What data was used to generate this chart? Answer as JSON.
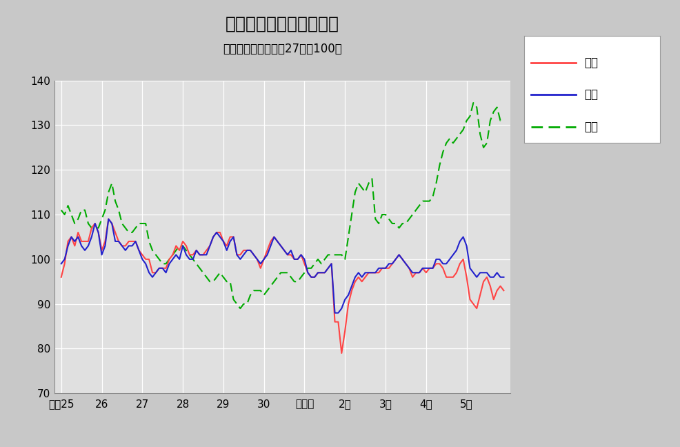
{
  "title": "鳥取県鉱工業指数の推移",
  "subtitle": "（季節調整済、平成27年＝100）",
  "ylim": [
    70,
    140
  ],
  "yticks": [
    70,
    80,
    90,
    100,
    110,
    120,
    130,
    140
  ],
  "fig_facecolor": "#c8c8c8",
  "plot_bg_color": "#e0e0e0",
  "legend_labels": [
    "生産",
    "出荷",
    "在庫"
  ],
  "line_colors": [
    "#ff4444",
    "#2222cc",
    "#00aa00"
  ],
  "x_tick_labels": [
    "平成25",
    "26",
    "27",
    "28",
    "29",
    "30",
    "令和元",
    "2年",
    "3年",
    "4年",
    "5年"
  ],
  "x_tick_positions": [
    0,
    12,
    24,
    36,
    48,
    60,
    72,
    84,
    96,
    108,
    120
  ],
  "seisan": [
    96,
    99,
    104,
    105,
    103,
    106,
    104,
    104,
    104,
    107,
    108,
    106,
    102,
    104,
    109,
    108,
    106,
    104,
    103,
    103,
    104,
    104,
    104,
    102,
    101,
    100,
    100,
    97,
    97,
    98,
    98,
    98,
    100,
    101,
    103,
    102,
    104,
    103,
    101,
    101,
    102,
    101,
    101,
    102,
    103,
    105,
    106,
    106,
    104,
    103,
    105,
    105,
    101,
    101,
    102,
    102,
    102,
    101,
    100,
    98,
    100,
    102,
    104,
    105,
    104,
    103,
    102,
    101,
    101,
    100,
    100,
    101,
    99,
    97,
    96,
    96,
    97,
    97,
    97,
    98,
    99,
    86,
    86,
    79,
    84,
    90,
    93,
    95,
    96,
    95,
    96,
    97,
    97,
    97,
    97,
    98,
    98,
    98,
    99,
    100,
    101,
    100,
    99,
    98,
    96,
    97,
    97,
    98,
    97,
    98,
    98,
    99,
    99,
    98,
    96,
    96,
    96,
    97,
    99,
    100,
    96,
    91,
    90,
    89,
    92,
    95,
    96,
    94,
    91,
    93,
    94,
    93
  ],
  "shuka": [
    99,
    100,
    103,
    105,
    104,
    105,
    103,
    102,
    103,
    105,
    108,
    106,
    101,
    103,
    109,
    108,
    104,
    104,
    103,
    102,
    103,
    103,
    104,
    102,
    100,
    99,
    97,
    96,
    97,
    98,
    98,
    97,
    99,
    100,
    101,
    100,
    103,
    101,
    100,
    100,
    102,
    101,
    101,
    101,
    103,
    105,
    106,
    105,
    104,
    102,
    104,
    105,
    101,
    100,
    101,
    102,
    102,
    101,
    100,
    99,
    100,
    101,
    103,
    105,
    104,
    103,
    102,
    101,
    102,
    100,
    100,
    101,
    100,
    97,
    96,
    96,
    97,
    97,
    97,
    98,
    99,
    88,
    88,
    89,
    91,
    92,
    94,
    96,
    97,
    96,
    97,
    97,
    97,
    97,
    98,
    98,
    98,
    99,
    99,
    100,
    101,
    100,
    99,
    98,
    97,
    97,
    97,
    98,
    98,
    98,
    98,
    100,
    100,
    99,
    99,
    100,
    101,
    102,
    104,
    105,
    103,
    98,
    97,
    96,
    97,
    97,
    97,
    96,
    96,
    97,
    96,
    96
  ],
  "zaiko": [
    111,
    110,
    112,
    110,
    108,
    109,
    111,
    111,
    108,
    107,
    107,
    107,
    109,
    111,
    115,
    117,
    113,
    111,
    108,
    107,
    106,
    106,
    107,
    108,
    108,
    108,
    104,
    102,
    101,
    100,
    99,
    99,
    100,
    101,
    102,
    103,
    103,
    102,
    101,
    100,
    99,
    98,
    97,
    96,
    95,
    95,
    96,
    97,
    96,
    95,
    95,
    91,
    90,
    89,
    90,
    90,
    92,
    93,
    93,
    93,
    92,
    93,
    94,
    95,
    96,
    97,
    97,
    97,
    96,
    95,
    95,
    96,
    97,
    98,
    98,
    99,
    100,
    99,
    100,
    101,
    101,
    101,
    101,
    101,
    100,
    105,
    110,
    115,
    117,
    116,
    115,
    117,
    118,
    109,
    108,
    110,
    110,
    109,
    108,
    108,
    107,
    108,
    108,
    109,
    110,
    111,
    112,
    113,
    113,
    113,
    114,
    117,
    121,
    124,
    126,
    127,
    126,
    127,
    128,
    129,
    131,
    132,
    135,
    134,
    128,
    125,
    126,
    131,
    133,
    134,
    131,
    131
  ]
}
